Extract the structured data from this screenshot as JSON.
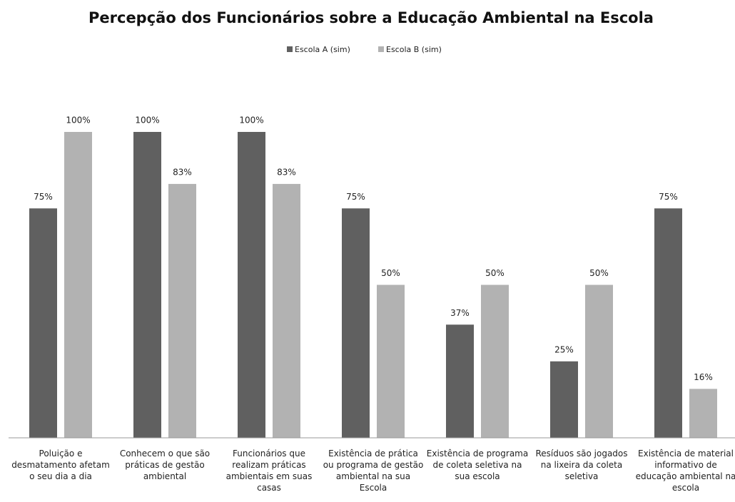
{
  "chart_data": {
    "type": "bar",
    "title": "Percepção dos Funcionários sobre a Educação Ambiental na Escola",
    "categories": [
      "Poluição e desmatamento afetam o seu dia a dia",
      "Conhecem o que são práticas de gestão ambiental",
      "Funcionários que realizam práticas ambientais em suas casas",
      "Existência de prática ou programa de gestão ambiental na sua Escola",
      "Existência de programa de coleta seletiva na sua escola",
      "Resíduos são jogados na lixeira da coleta seletiva",
      "Existência de material informativo de educação ambiental na escola"
    ],
    "series": [
      {
        "name": "Escola A (sim)",
        "color": "#606060",
        "values": [
          75,
          100,
          100,
          75,
          37,
          25,
          75
        ],
        "value_labels": [
          "75%",
          "100%",
          "100%",
          "75%",
          "37%",
          "25%",
          "75%"
        ]
      },
      {
        "name": "Escola B (sim)",
        "color": "#b2b2b2",
        "values": [
          100,
          83,
          83,
          50,
          50,
          50,
          16
        ],
        "value_labels": [
          "100%",
          "83%",
          "83%",
          "50%",
          "50%",
          "50%",
          "16%"
        ]
      }
    ],
    "ylim": [
      0,
      100
    ],
    "legend": "top"
  }
}
